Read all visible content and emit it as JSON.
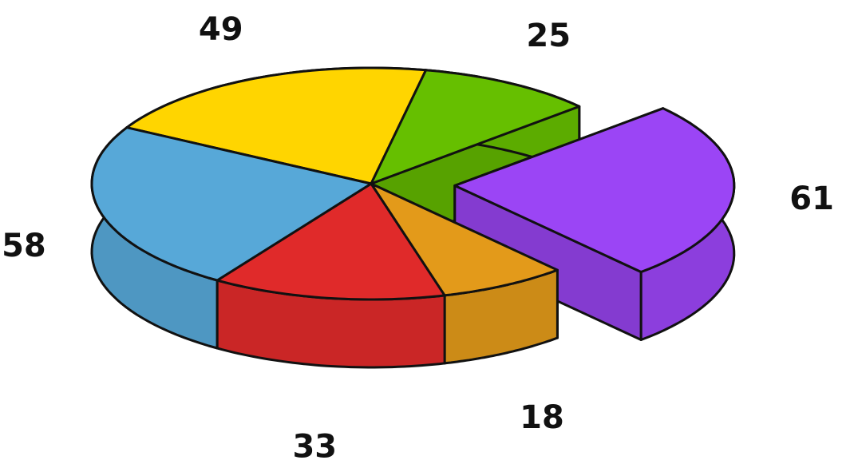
{
  "chart_data": {
    "type": "pie",
    "values": [
      49,
      25,
      61,
      18,
      33,
      58
    ],
    "colors": [
      "#ffd500",
      "#66bf00",
      "#9b45f5",
      "#e39a1a",
      "#e02a2a",
      "#57a8d8"
    ],
    "exploded": [
      false,
      false,
      true,
      false,
      false,
      false
    ]
  }
}
